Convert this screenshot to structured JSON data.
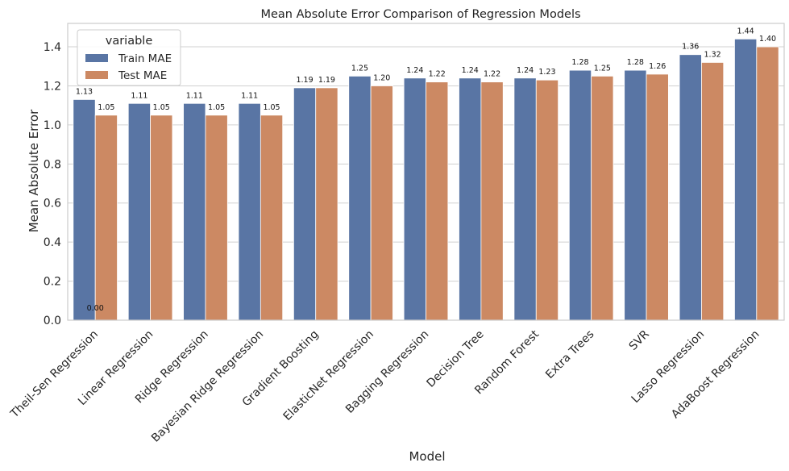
{
  "chart_data": {
    "type": "bar",
    "title": "Mean Absolute Error Comparison of Regression Models",
    "xlabel": "Model",
    "ylabel": "Mean Absolute Error",
    "ylim": [
      0,
      1.52
    ],
    "yticks": [
      0.0,
      0.2,
      0.4,
      0.6,
      0.8,
      1.0,
      1.2,
      1.4
    ],
    "ytick_labels": [
      "0.0",
      "0.2",
      "0.4",
      "0.6",
      "0.8",
      "1.0",
      "1.2",
      "1.4"
    ],
    "grid": "horizontal",
    "legend": {
      "title": "variable",
      "placement": "top-left"
    },
    "categories": [
      "Theil-Sen Regression",
      "Linear Regression",
      "Ridge Regression",
      "Bayesian Ridge Regression",
      "Gradient Boosting",
      "ElasticNet Regression",
      "Bagging Regression",
      "Decision Tree",
      "Random Forest",
      "Extra Trees",
      "SVR",
      "Lasso Regression",
      "AdaBoost Regression"
    ],
    "series": [
      {
        "name": "Train MAE",
        "color": "#5975a4",
        "values": [
          1.13,
          1.11,
          1.11,
          1.11,
          1.19,
          1.25,
          1.24,
          1.24,
          1.24,
          1.28,
          1.28,
          1.36,
          1.44
        ],
        "value_labels": [
          "1.13",
          "1.11",
          "1.11",
          "1.11",
          "1.19",
          "1.25",
          "1.24",
          "1.24",
          "1.24",
          "1.28",
          "1.28",
          "1.36",
          "1.44"
        ]
      },
      {
        "name": "Test MAE",
        "color": "#cc8963",
        "values": [
          1.05,
          1.05,
          1.05,
          1.05,
          1.19,
          1.2,
          1.22,
          1.22,
          1.23,
          1.25,
          1.26,
          1.32,
          1.4
        ],
        "value_labels": [
          "1.05",
          "1.05",
          "1.05",
          "1.05",
          "1.19",
          "1.20",
          "1.22",
          "1.22",
          "1.23",
          "1.25",
          "1.26",
          "1.32",
          "1.40"
        ]
      }
    ],
    "annotations": [
      {
        "text": "0.00",
        "category": "Theil-Sen Regression",
        "y": 0.0
      }
    ]
  }
}
